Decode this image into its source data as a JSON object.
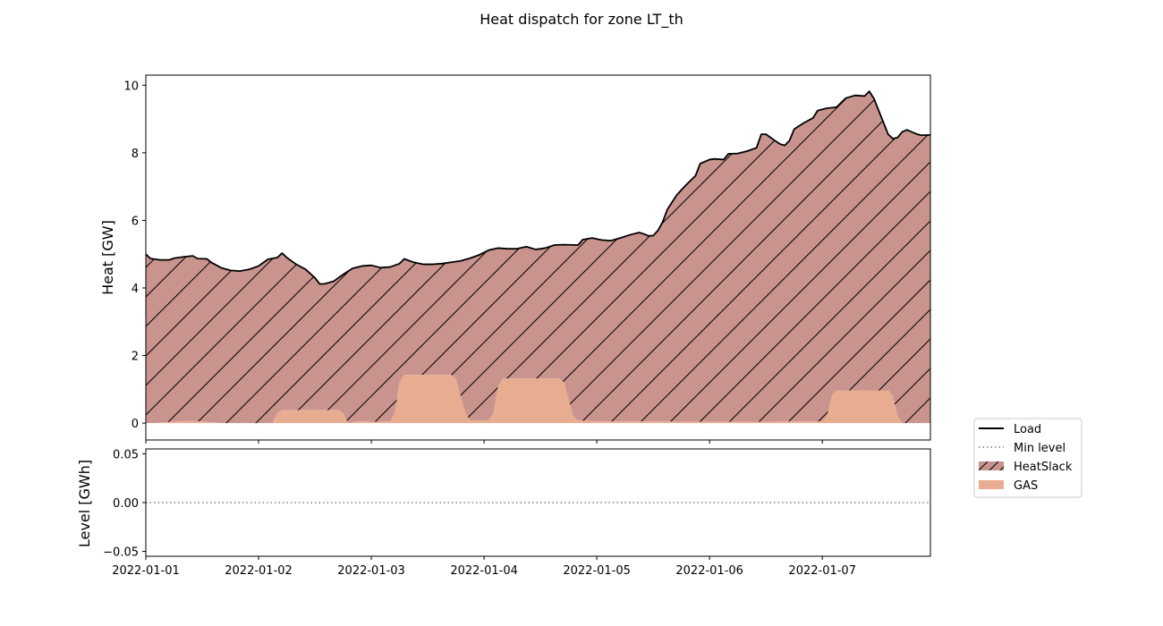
{
  "chart_data": [
    {
      "type": "area",
      "title": "Heat dispatch for zone LT_th",
      "ylabel": "Heat [GW]",
      "xlabel": "",
      "xlim": [
        "2022-01-01T00:00",
        "2022-01-07T23:00"
      ],
      "ylim": [
        -0.5,
        10.3
      ],
      "yticks": [
        0,
        2,
        4,
        6,
        8,
        10
      ],
      "ytick_labels": [
        "0",
        "2",
        "4",
        "6",
        "8",
        "10"
      ],
      "grid": false,
      "series": [
        {
          "name": "Load",
          "kind": "line",
          "color": "#000000",
          "points": [
            [
              "2022-01-01T00:00",
              5.0
            ],
            [
              "2022-01-01T01:00",
              4.87
            ],
            [
              "2022-01-01T03:00",
              4.83
            ],
            [
              "2022-01-01T05:00",
              4.83
            ],
            [
              "2022-01-01T06:00",
              4.88
            ],
            [
              "2022-01-01T08:00",
              4.92
            ],
            [
              "2022-01-01T10:00",
              4.95
            ],
            [
              "2022-01-01T11:00",
              4.87
            ],
            [
              "2022-01-01T13:00",
              4.86
            ],
            [
              "2022-01-01T14:00",
              4.75
            ],
            [
              "2022-01-01T16:00",
              4.6
            ],
            [
              "2022-01-01T18:00",
              4.52
            ],
            [
              "2022-01-01T20:00",
              4.5
            ],
            [
              "2022-01-01T22:00",
              4.55
            ],
            [
              "2022-01-02T00:00",
              4.65
            ],
            [
              "2022-01-02T02:00",
              4.85
            ],
            [
              "2022-01-02T04:00",
              4.9
            ],
            [
              "2022-01-02T05:00",
              5.03
            ],
            [
              "2022-01-02T06:00",
              4.9
            ],
            [
              "2022-01-02T08:00",
              4.7
            ],
            [
              "2022-01-02T10:00",
              4.55
            ],
            [
              "2022-01-02T12:00",
              4.3
            ],
            [
              "2022-01-02T13:00",
              4.12
            ],
            [
              "2022-01-02T14:00",
              4.12
            ],
            [
              "2022-01-02T16:00",
              4.2
            ],
            [
              "2022-01-02T18:00",
              4.4
            ],
            [
              "2022-01-02T20:00",
              4.58
            ],
            [
              "2022-01-02T22:00",
              4.65
            ],
            [
              "2022-01-03T00:00",
              4.67
            ],
            [
              "2022-01-03T02:00",
              4.6
            ],
            [
              "2022-01-03T04:00",
              4.62
            ],
            [
              "2022-01-03T06:00",
              4.72
            ],
            [
              "2022-01-03T07:00",
              4.86
            ],
            [
              "2022-01-03T09:00",
              4.76
            ],
            [
              "2022-01-03T11:00",
              4.7
            ],
            [
              "2022-01-03T13:00",
              4.7
            ],
            [
              "2022-01-03T15:00",
              4.72
            ],
            [
              "2022-01-03T17:00",
              4.76
            ],
            [
              "2022-01-03T19:00",
              4.8
            ],
            [
              "2022-01-03T21:00",
              4.88
            ],
            [
              "2022-01-03T23:00",
              4.98
            ],
            [
              "2022-01-04T01:00",
              5.12
            ],
            [
              "2022-01-04T03:00",
              5.18
            ],
            [
              "2022-01-04T05:00",
              5.16
            ],
            [
              "2022-01-04T07:00",
              5.16
            ],
            [
              "2022-01-04T09:00",
              5.22
            ],
            [
              "2022-01-04T11:00",
              5.14
            ],
            [
              "2022-01-04T13:00",
              5.18
            ],
            [
              "2022-01-04T15:00",
              5.27
            ],
            [
              "2022-01-04T17:00",
              5.28
            ],
            [
              "2022-01-04T20:00",
              5.27
            ],
            [
              "2022-01-04T21:00",
              5.43
            ],
            [
              "2022-01-04T23:00",
              5.48
            ],
            [
              "2022-01-05T01:00",
              5.42
            ],
            [
              "2022-01-05T03:00",
              5.4
            ],
            [
              "2022-01-05T05:00",
              5.48
            ],
            [
              "2022-01-05T07:00",
              5.57
            ],
            [
              "2022-01-05T09:00",
              5.64
            ],
            [
              "2022-01-05T10:00",
              5.6
            ],
            [
              "2022-01-05T11:00",
              5.54
            ],
            [
              "2022-01-05T12:00",
              5.55
            ],
            [
              "2022-01-05T13:00",
              5.7
            ],
            [
              "2022-01-05T14:00",
              5.95
            ],
            [
              "2022-01-05T15:00",
              6.32
            ],
            [
              "2022-01-05T17:00",
              6.75
            ],
            [
              "2022-01-05T19:00",
              7.05
            ],
            [
              "2022-01-05T21:00",
              7.32
            ],
            [
              "2022-01-05T22:00",
              7.68
            ],
            [
              "2022-01-06T00:00",
              7.8
            ],
            [
              "2022-01-06T01:00",
              7.82
            ],
            [
              "2022-01-06T03:00",
              7.8
            ],
            [
              "2022-01-06T04:00",
              7.97
            ],
            [
              "2022-01-06T06:00",
              7.98
            ],
            [
              "2022-01-06T08:00",
              8.05
            ],
            [
              "2022-01-06T10:00",
              8.15
            ],
            [
              "2022-01-06T11:00",
              8.55
            ],
            [
              "2022-01-06T12:00",
              8.55
            ],
            [
              "2022-01-06T14:00",
              8.35
            ],
            [
              "2022-01-06T15:00",
              8.26
            ],
            [
              "2022-01-06T16:00",
              8.22
            ],
            [
              "2022-01-06T17:00",
              8.36
            ],
            [
              "2022-01-06T18:00",
              8.7
            ],
            [
              "2022-01-06T20:00",
              8.88
            ],
            [
              "2022-01-06T22:00",
              9.03
            ],
            [
              "2022-01-06T23:00",
              9.25
            ],
            [
              "2022-01-07T01:00",
              9.32
            ],
            [
              "2022-01-07T03:00",
              9.35
            ],
            [
              "2022-01-07T05:00",
              9.62
            ],
            [
              "2022-01-07T07:00",
              9.7
            ],
            [
              "2022-01-07T09:00",
              9.68
            ],
            [
              "2022-01-07T10:00",
              9.82
            ],
            [
              "2022-01-07T11:00",
              9.6
            ],
            [
              "2022-01-07T13:00",
              8.9
            ],
            [
              "2022-01-07T14:00",
              8.55
            ],
            [
              "2022-01-07T15:00",
              8.42
            ],
            [
              "2022-01-07T16:00",
              8.45
            ],
            [
              "2022-01-07T17:00",
              8.62
            ],
            [
              "2022-01-07T18:00",
              8.68
            ],
            [
              "2022-01-07T20:00",
              8.56
            ],
            [
              "2022-01-07T21:00",
              8.52
            ],
            [
              "2022-01-07T23:00",
              8.53
            ],
            [
              "2022-01-08T00:00",
              8.52
            ],
            [
              "2022-01-08T01:00",
              8.47
            ],
            [
              "2022-01-08T02:00",
              8.42
            ]
          ]
        },
        {
          "name": "HeatSlack",
          "kind": "area",
          "color": "#c9948e",
          "hatch": "/",
          "note_stack": "fills from GAS up to Load"
        },
        {
          "name": "GAS",
          "kind": "area",
          "color": "#e8ad91",
          "points": [
            [
              "2022-01-01T00:00",
              0.0
            ],
            [
              "2022-01-01T02:00",
              0.0
            ],
            [
              "2022-01-01T04:00",
              0.02
            ],
            [
              "2022-01-01T06:00",
              0.05
            ],
            [
              "2022-01-01T08:00",
              0.06
            ],
            [
              "2022-01-01T10:00",
              0.06
            ],
            [
              "2022-01-01T12:00",
              0.05
            ],
            [
              "2022-01-01T14:00",
              0.02
            ],
            [
              "2022-01-01T16:00",
              0.0
            ],
            [
              "2022-01-02T03:00",
              0.0
            ],
            [
              "2022-01-02T04:00",
              0.3
            ],
            [
              "2022-01-02T05:00",
              0.38
            ],
            [
              "2022-01-02T17:00",
              0.38
            ],
            [
              "2022-01-02T18:00",
              0.3
            ],
            [
              "2022-01-02T19:00",
              0.0
            ],
            [
              "2022-01-02T21:00",
              0.05
            ],
            [
              "2022-01-02T23:00",
              0.05
            ],
            [
              "2022-01-03T00:00",
              0.04
            ],
            [
              "2022-01-03T04:00",
              0.05
            ],
            [
              "2022-01-03T05:00",
              0.3
            ],
            [
              "2022-01-03T06:00",
              1.2
            ],
            [
              "2022-01-03T07:00",
              1.43
            ],
            [
              "2022-01-03T17:00",
              1.43
            ],
            [
              "2022-01-03T18:00",
              1.3
            ],
            [
              "2022-01-03T19:00",
              0.8
            ],
            [
              "2022-01-03T20:00",
              0.3
            ],
            [
              "2022-01-03T21:00",
              0.08
            ],
            [
              "2022-01-04T01:00",
              0.08
            ],
            [
              "2022-01-04T02:00",
              0.3
            ],
            [
              "2022-01-04T03:00",
              1.1
            ],
            [
              "2022-01-04T04:00",
              1.32
            ],
            [
              "2022-01-04T16:00",
              1.32
            ],
            [
              "2022-01-04T17:00",
              1.2
            ],
            [
              "2022-01-04T18:00",
              0.7
            ],
            [
              "2022-01-04T19:00",
              0.2
            ],
            [
              "2022-01-04T20:00",
              0.08
            ],
            [
              "2022-01-05T00:00",
              0.05
            ],
            [
              "2022-01-05T12:00",
              0.05
            ],
            [
              "2022-01-05T15:00",
              0.05
            ],
            [
              "2022-01-05T18:00",
              0.04
            ],
            [
              "2022-01-06T06:00",
              0.04
            ],
            [
              "2022-01-06T18:00",
              0.05
            ],
            [
              "2022-01-07T00:00",
              0.05
            ],
            [
              "2022-01-07T01:00",
              0.2
            ],
            [
              "2022-01-07T02:00",
              0.8
            ],
            [
              "2022-01-07T03:00",
              0.97
            ],
            [
              "2022-01-07T14:00",
              0.97
            ],
            [
              "2022-01-07T15:00",
              0.8
            ],
            [
              "2022-01-07T16:00",
              0.2
            ],
            [
              "2022-01-07T17:00",
              0.0
            ],
            [
              "2022-01-08T02:00",
              0.0
            ]
          ]
        }
      ]
    },
    {
      "type": "line",
      "title": "",
      "ylabel": "Level [GWh]",
      "xlabel": "",
      "xlim": [
        "2022-01-01T00:00",
        "2022-01-07T23:00"
      ],
      "ylim": [
        -0.055,
        0.055
      ],
      "yticks": [
        -0.05,
        0.0,
        0.05
      ],
      "ytick_labels": [
        "−0.05",
        "0.00",
        "0.05"
      ],
      "xticks": [
        "2022-01-01",
        "2022-01-02",
        "2022-01-03",
        "2022-01-04",
        "2022-01-05",
        "2022-01-06",
        "2022-01-07"
      ],
      "xtick_labels": [
        "2022-01-01",
        "2022-01-02",
        "2022-01-03",
        "2022-01-04",
        "2022-01-05",
        "2022-01-06",
        "2022-01-07"
      ],
      "grid": false,
      "series": [
        {
          "name": "Min level",
          "kind": "line",
          "style": "dotted",
          "color": "#808080",
          "points": [
            [
              "2022-01-01T00:00",
              0.0
            ],
            [
              "2022-01-08T02:00",
              0.0
            ]
          ]
        }
      ]
    }
  ],
  "legend": {
    "placement": "lower-right-outside",
    "entries": [
      {
        "label": "Load",
        "kind": "line",
        "color": "#000000"
      },
      {
        "label": "Min level",
        "kind": "dotted",
        "color": "#808080"
      },
      {
        "label": "HeatSlack",
        "kind": "hatched-patch",
        "color": "#c9948e"
      },
      {
        "label": "GAS",
        "kind": "patch",
        "color": "#e8ad91"
      }
    ]
  }
}
